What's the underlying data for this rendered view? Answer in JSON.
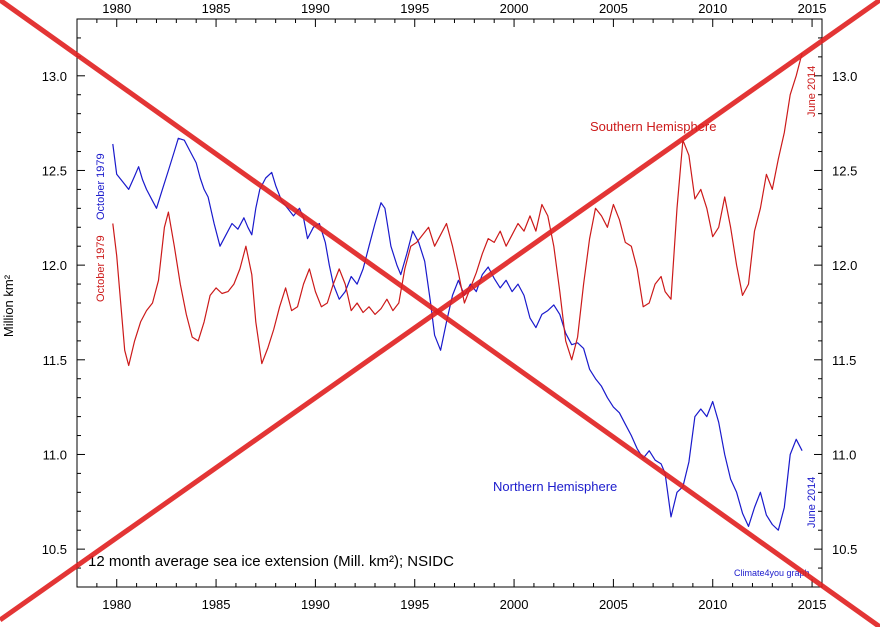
{
  "chart_data": {
    "type": "line",
    "title": "12 month average sea ice extension (Mill. km²); NSIDC",
    "ylabel": "Million km²",
    "credit": "Climate4you graph",
    "xlim": [
      1978,
      2015.5
    ],
    "ylim": [
      10.3,
      13.3
    ],
    "x_ticks": [
      1980,
      1985,
      1990,
      1995,
      2000,
      2005,
      2010,
      2015
    ],
    "x_tick_labels": [
      "1980",
      "1985",
      "1990",
      "1995",
      "2000",
      "2005",
      "2010",
      "2015"
    ],
    "y_ticks": [
      10.5,
      11.0,
      11.5,
      12.0,
      12.5,
      13.0
    ],
    "y_tick_labels": [
      "10.5",
      "11.0",
      "11.5",
      "12.0",
      "12.5",
      "13.0"
    ],
    "grid": false,
    "series": [
      {
        "name": "Northern Hemisphere",
        "color": "#1a1acc",
        "start_label": "October 1979",
        "end_label": "June 2014",
        "points": [
          [
            1979.8,
            12.64
          ],
          [
            1980.0,
            12.48
          ],
          [
            1980.3,
            12.44
          ],
          [
            1980.6,
            12.4
          ],
          [
            1980.9,
            12.47
          ],
          [
            1981.1,
            12.52
          ],
          [
            1981.3,
            12.45
          ],
          [
            1981.5,
            12.4
          ],
          [
            1981.8,
            12.34
          ],
          [
            1982.0,
            12.3
          ],
          [
            1982.3,
            12.4
          ],
          [
            1982.6,
            12.5
          ],
          [
            1982.9,
            12.6
          ],
          [
            1983.1,
            12.67
          ],
          [
            1983.4,
            12.66
          ],
          [
            1983.7,
            12.6
          ],
          [
            1984.0,
            12.54
          ],
          [
            1984.2,
            12.46
          ],
          [
            1984.4,
            12.4
          ],
          [
            1984.6,
            12.36
          ],
          [
            1984.9,
            12.22
          ],
          [
            1985.2,
            12.1
          ],
          [
            1985.5,
            12.16
          ],
          [
            1985.8,
            12.22
          ],
          [
            1986.1,
            12.19
          ],
          [
            1986.4,
            12.25
          ],
          [
            1986.6,
            12.2
          ],
          [
            1986.8,
            12.16
          ],
          [
            1987.0,
            12.3
          ],
          [
            1987.2,
            12.4
          ],
          [
            1987.5,
            12.46
          ],
          [
            1987.8,
            12.49
          ],
          [
            1988.0,
            12.42
          ],
          [
            1988.3,
            12.34
          ],
          [
            1988.6,
            12.3
          ],
          [
            1988.9,
            12.26
          ],
          [
            1989.2,
            12.3
          ],
          [
            1989.4,
            12.25
          ],
          [
            1989.6,
            12.14
          ],
          [
            1989.9,
            12.2
          ],
          [
            1990.2,
            12.22
          ],
          [
            1990.5,
            12.12
          ],
          [
            1990.7,
            12.0
          ],
          [
            1990.9,
            11.9
          ],
          [
            1991.2,
            11.82
          ],
          [
            1991.5,
            11.86
          ],
          [
            1991.8,
            11.94
          ],
          [
            1992.1,
            11.9
          ],
          [
            1992.4,
            11.98
          ],
          [
            1992.7,
            12.1
          ],
          [
            1993.0,
            12.22
          ],
          [
            1993.3,
            12.33
          ],
          [
            1993.5,
            12.3
          ],
          [
            1993.8,
            12.1
          ],
          [
            1994.1,
            12.0
          ],
          [
            1994.3,
            11.95
          ],
          [
            1994.6,
            12.06
          ],
          [
            1994.9,
            12.18
          ],
          [
            1995.2,
            12.12
          ],
          [
            1995.5,
            12.02
          ],
          [
            1995.8,
            11.8
          ],
          [
            1996.0,
            11.63
          ],
          [
            1996.3,
            11.55
          ],
          [
            1996.6,
            11.7
          ],
          [
            1996.9,
            11.84
          ],
          [
            1997.2,
            11.92
          ],
          [
            1997.5,
            11.84
          ],
          [
            1997.8,
            11.9
          ],
          [
            1998.1,
            11.86
          ],
          [
            1998.4,
            11.95
          ],
          [
            1998.7,
            11.99
          ],
          [
            1999.0,
            11.93
          ],
          [
            1999.3,
            11.88
          ],
          [
            1999.6,
            11.92
          ],
          [
            1999.9,
            11.86
          ],
          [
            2000.2,
            11.9
          ],
          [
            2000.5,
            11.84
          ],
          [
            2000.8,
            11.72
          ],
          [
            2001.1,
            11.67
          ],
          [
            2001.4,
            11.74
          ],
          [
            2001.7,
            11.76
          ],
          [
            2002.0,
            11.79
          ],
          [
            2002.3,
            11.74
          ],
          [
            2002.6,
            11.64
          ],
          [
            2002.9,
            11.58
          ],
          [
            2003.2,
            11.59
          ],
          [
            2003.5,
            11.56
          ],
          [
            2003.8,
            11.45
          ],
          [
            2004.1,
            11.4
          ],
          [
            2004.4,
            11.36
          ],
          [
            2004.7,
            11.3
          ],
          [
            2005.0,
            11.25
          ],
          [
            2005.3,
            11.22
          ],
          [
            2005.6,
            11.16
          ],
          [
            2005.9,
            11.1
          ],
          [
            2006.2,
            11.03
          ],
          [
            2006.5,
            10.98
          ],
          [
            2006.8,
            11.02
          ],
          [
            2007.1,
            10.97
          ],
          [
            2007.4,
            10.95
          ],
          [
            2007.6,
            10.9
          ],
          [
            2007.9,
            10.67
          ],
          [
            2008.2,
            10.8
          ],
          [
            2008.5,
            10.83
          ],
          [
            2008.8,
            10.96
          ],
          [
            2009.1,
            11.2
          ],
          [
            2009.4,
            11.24
          ],
          [
            2009.7,
            11.2
          ],
          [
            2010.0,
            11.28
          ],
          [
            2010.3,
            11.17
          ],
          [
            2010.6,
            11.0
          ],
          [
            2010.9,
            10.87
          ],
          [
            2011.2,
            10.8
          ],
          [
            2011.5,
            10.69
          ],
          [
            2011.8,
            10.62
          ],
          [
            2012.1,
            10.72
          ],
          [
            2012.4,
            10.8
          ],
          [
            2012.7,
            10.68
          ],
          [
            2013.0,
            10.63
          ],
          [
            2013.3,
            10.6
          ],
          [
            2013.6,
            10.72
          ],
          [
            2013.9,
            11.0
          ],
          [
            2014.2,
            11.08
          ],
          [
            2014.5,
            11.02
          ]
        ]
      },
      {
        "name": "Southern Hemisphere",
        "color": "#cc1a1a",
        "start_label": "October 1979",
        "end_label": "June 2014",
        "points": [
          [
            1979.8,
            12.22
          ],
          [
            1980.0,
            12.05
          ],
          [
            1980.2,
            11.8
          ],
          [
            1980.4,
            11.55
          ],
          [
            1980.6,
            11.47
          ],
          [
            1980.9,
            11.6
          ],
          [
            1981.2,
            11.7
          ],
          [
            1981.5,
            11.76
          ],
          [
            1981.8,
            11.8
          ],
          [
            1982.1,
            11.92
          ],
          [
            1982.4,
            12.2
          ],
          [
            1982.6,
            12.28
          ],
          [
            1982.9,
            12.1
          ],
          [
            1983.2,
            11.9
          ],
          [
            1983.5,
            11.74
          ],
          [
            1983.8,
            11.62
          ],
          [
            1984.1,
            11.6
          ],
          [
            1984.4,
            11.7
          ],
          [
            1984.7,
            11.84
          ],
          [
            1985.0,
            11.88
          ],
          [
            1985.3,
            11.85
          ],
          [
            1985.6,
            11.86
          ],
          [
            1985.9,
            11.9
          ],
          [
            1986.2,
            11.98
          ],
          [
            1986.5,
            12.1
          ],
          [
            1986.8,
            11.95
          ],
          [
            1987.0,
            11.7
          ],
          [
            1987.3,
            11.48
          ],
          [
            1987.6,
            11.56
          ],
          [
            1987.9,
            11.66
          ],
          [
            1988.2,
            11.78
          ],
          [
            1988.5,
            11.88
          ],
          [
            1988.8,
            11.76
          ],
          [
            1989.1,
            11.78
          ],
          [
            1989.4,
            11.9
          ],
          [
            1989.7,
            11.98
          ],
          [
            1990.0,
            11.86
          ],
          [
            1990.3,
            11.78
          ],
          [
            1990.6,
            11.8
          ],
          [
            1990.9,
            11.9
          ],
          [
            1991.2,
            11.98
          ],
          [
            1991.5,
            11.9
          ],
          [
            1991.8,
            11.76
          ],
          [
            1992.1,
            11.8
          ],
          [
            1992.4,
            11.75
          ],
          [
            1992.7,
            11.78
          ],
          [
            1993.0,
            11.74
          ],
          [
            1993.3,
            11.77
          ],
          [
            1993.6,
            11.82
          ],
          [
            1993.9,
            11.76
          ],
          [
            1994.2,
            11.8
          ],
          [
            1994.5,
            11.98
          ],
          [
            1994.8,
            12.1
          ],
          [
            1995.1,
            12.12
          ],
          [
            1995.4,
            12.16
          ],
          [
            1995.7,
            12.2
          ],
          [
            1996.0,
            12.1
          ],
          [
            1996.3,
            12.16
          ],
          [
            1996.6,
            12.22
          ],
          [
            1996.9,
            12.1
          ],
          [
            1997.2,
            11.96
          ],
          [
            1997.5,
            11.8
          ],
          [
            1997.8,
            11.88
          ],
          [
            1998.1,
            11.96
          ],
          [
            1998.4,
            12.06
          ],
          [
            1998.7,
            12.14
          ],
          [
            1999.0,
            12.12
          ],
          [
            1999.3,
            12.18
          ],
          [
            1999.6,
            12.1
          ],
          [
            1999.9,
            12.16
          ],
          [
            2000.2,
            12.22
          ],
          [
            2000.5,
            12.18
          ],
          [
            2000.8,
            12.26
          ],
          [
            2001.1,
            12.18
          ],
          [
            2001.4,
            12.32
          ],
          [
            2001.7,
            12.26
          ],
          [
            2002.0,
            12.1
          ],
          [
            2002.3,
            11.86
          ],
          [
            2002.6,
            11.6
          ],
          [
            2002.9,
            11.5
          ],
          [
            2003.2,
            11.62
          ],
          [
            2003.5,
            11.9
          ],
          [
            2003.8,
            12.14
          ],
          [
            2004.1,
            12.3
          ],
          [
            2004.4,
            12.26
          ],
          [
            2004.7,
            12.2
          ],
          [
            2005.0,
            12.32
          ],
          [
            2005.3,
            12.24
          ],
          [
            2005.6,
            12.12
          ],
          [
            2005.9,
            12.1
          ],
          [
            2006.2,
            11.98
          ],
          [
            2006.5,
            11.78
          ],
          [
            2006.8,
            11.8
          ],
          [
            2007.1,
            11.9
          ],
          [
            2007.4,
            11.94
          ],
          [
            2007.6,
            11.86
          ],
          [
            2007.9,
            11.82
          ],
          [
            2008.2,
            12.3
          ],
          [
            2008.5,
            12.66
          ],
          [
            2008.8,
            12.58
          ],
          [
            2009.1,
            12.35
          ],
          [
            2009.4,
            12.4
          ],
          [
            2009.7,
            12.3
          ],
          [
            2010.0,
            12.15
          ],
          [
            2010.3,
            12.2
          ],
          [
            2010.6,
            12.36
          ],
          [
            2010.9,
            12.2
          ],
          [
            2011.2,
            12.0
          ],
          [
            2011.5,
            11.84
          ],
          [
            2011.8,
            11.9
          ],
          [
            2012.1,
            12.18
          ],
          [
            2012.4,
            12.3
          ],
          [
            2012.7,
            12.48
          ],
          [
            2013.0,
            12.4
          ],
          [
            2013.3,
            12.56
          ],
          [
            2013.6,
            12.7
          ],
          [
            2013.9,
            12.9
          ],
          [
            2014.2,
            13.0
          ],
          [
            2014.5,
            13.12
          ]
        ]
      }
    ],
    "overlay": {
      "type": "cross",
      "color": "#e02020"
    }
  }
}
